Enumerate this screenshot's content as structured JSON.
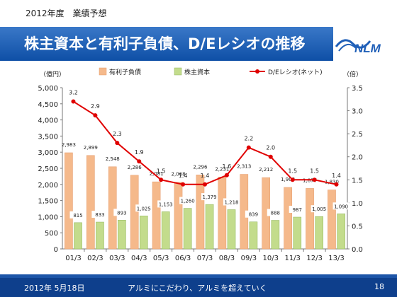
{
  "header": {
    "year_label": "2012年度　業績予想",
    "title": "株主資本と有利子負債、D/Eレシオの推移"
  },
  "logo": {
    "text": "NLM"
  },
  "footer": {
    "date": "2012年 5月18日",
    "slogan": "アルミにこだわり、アルミを超えていく",
    "page": "18"
  },
  "colors": {
    "title_bar": "#1f5fb8",
    "debt_bar": "#f5b98b",
    "equity_bar": "#c3dc8c",
    "de_line": "#e00000",
    "footer": "#0e3f8c"
  },
  "chart_data": {
    "type": "bar",
    "categories": [
      "01/3",
      "02/3",
      "03/3",
      "04/3",
      "05/3",
      "06/3",
      "07/3",
      "08/3",
      "09/3",
      "10/3",
      "11/3",
      "12/3",
      "13/3"
    ],
    "series": [
      {
        "name": "有利子負債",
        "type": "bar",
        "axis": "left",
        "values": [
          2983,
          2899,
          2548,
          2286,
          2081,
          2068,
          2296,
          2231,
          2313,
          2212,
          1908,
          1877,
          1830
        ],
        "labels": [
          "2,983",
          "2,899",
          "2,548",
          "2,286",
          "2,081",
          "2,068",
          "2,296",
          "2,231",
          "2,313",
          "2,212",
          "1,908",
          "1,877",
          "1,830"
        ]
      },
      {
        "name": "株主資本",
        "type": "bar",
        "axis": "left",
        "values": [
          815,
          833,
          893,
          1025,
          1153,
          1260,
          1379,
          1218,
          839,
          888,
          987,
          1005,
          1090
        ],
        "labels": [
          "815",
          "833",
          "893",
          "1,025",
          "1,153",
          "1,260",
          "1,379",
          "1,218",
          "839",
          "888",
          "987",
          "1,005",
          "1,090"
        ]
      },
      {
        "name": "D/Eレシオ(ネット)",
        "type": "line",
        "axis": "right",
        "values": [
          3.2,
          2.9,
          2.3,
          1.9,
          1.5,
          1.4,
          1.4,
          1.6,
          2.2,
          2.0,
          1.5,
          1.5,
          1.4
        ],
        "labels": [
          "3.2",
          "2.9",
          "2.3",
          "1.9",
          "1.5",
          "1.4",
          "1.4",
          "1.6",
          "2.2",
          "2.0",
          "1.5",
          "1.5",
          "1.4"
        ]
      }
    ],
    "y_left": {
      "unit": "（億円）",
      "ylim": [
        0,
        5000
      ],
      "ticks": [
        "0",
        "500",
        "1,000",
        "1,500",
        "2,000",
        "2,500",
        "3,000",
        "3,500",
        "4,000",
        "4,500",
        "5,000"
      ]
    },
    "y_right": {
      "unit": "（倍）",
      "ylim": [
        0,
        3.5
      ],
      "ticks": [
        "0.0",
        "0.5",
        "1.0",
        "1.5",
        "2.0",
        "2.5",
        "3.0",
        "3.5"
      ]
    },
    "legend_position": "top",
    "grid": false
  }
}
